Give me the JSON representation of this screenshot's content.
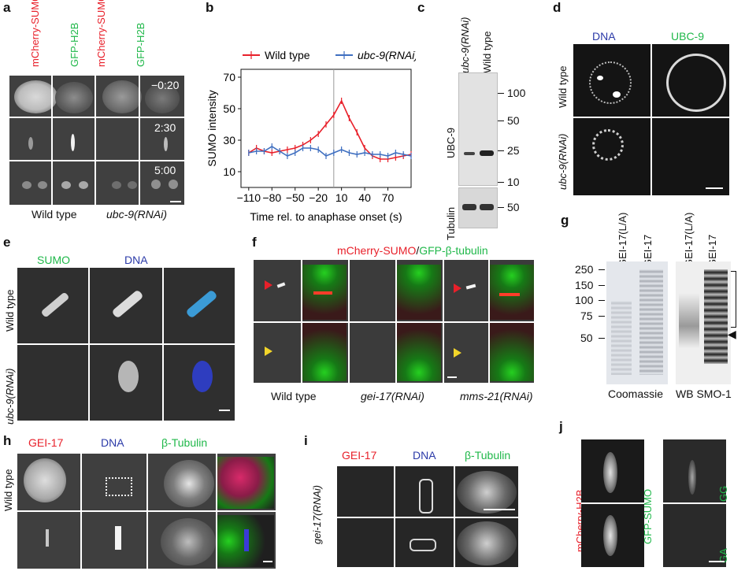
{
  "panels": {
    "a": {
      "letter": "a",
      "col_labels": [
        "mCherry-SUMO",
        "GFP-H2B",
        "mCherry-SUMO",
        "GFP-H2B"
      ],
      "time_labels": [
        "−0:20",
        "2:30",
        "5:00"
      ],
      "condition_labels": [
        "Wild type",
        "ubc-9(RNAi)"
      ]
    },
    "b": {
      "letter": "b"
    },
    "c": {
      "letter": "c",
      "col_labels": [
        "ubc-9(RNAi)",
        "Wild type"
      ],
      "row_labels": [
        "UBC-9",
        "Tubulin"
      ],
      "mw_markers": [
        "100",
        "50",
        "25",
        "10"
      ],
      "tubulin_marker": "50"
    },
    "d": {
      "letter": "d",
      "col_labels": [
        "DNA",
        "UBC-9"
      ],
      "row_labels": [
        "Wild type",
        "ubc-9(RNAi)"
      ]
    },
    "e": {
      "letter": "e",
      "col_labels": [
        "SUMO",
        "DNA"
      ],
      "row_labels": [
        "Wild type",
        "ubc-9(RNAi)"
      ]
    },
    "f": {
      "letter": "f",
      "title_part1": "mCherry-SUMO",
      "title_sep": "/",
      "title_part2": "GFP-β-tubulin",
      "condition_labels": [
        "Wild type",
        "gei-17(RNAi)",
        "mms-21(RNAi)"
      ]
    },
    "g": {
      "letter": "g",
      "col_labels": [
        "GEI-17(L/A)",
        "GEI-17",
        "GEI-17(L/A)",
        "GEI-17"
      ],
      "mw_markers": [
        "250",
        "150",
        "100",
        "75",
        "50"
      ],
      "bottom_labels": [
        "Coomassie",
        "WB SMO-1"
      ],
      "arrowhead": "◀"
    },
    "h": {
      "letter": "h",
      "col_labels": [
        "GEI-17",
        "DNA",
        "β-Tubulin"
      ],
      "row_label": "Wild type"
    },
    "i": {
      "letter": "i",
      "col_labels": [
        "GEI-17",
        "DNA",
        "β-Tubulin"
      ],
      "row_label": "gei-17(RNAi)"
    },
    "j": {
      "letter": "j",
      "left_label": "mCherry-H2B",
      "middle_label": "GFP-SUMO",
      "right_labels": [
        "GG",
        "GA"
      ]
    }
  },
  "chart_data": {
    "type": "line",
    "title": "",
    "xlabel": "Time rel. to anaphase onset (s)",
    "ylabel": "SUMO intensity",
    "xlim": [
      -120,
      100
    ],
    "ylim": [
      0,
      75
    ],
    "xticks": [
      -110,
      -80,
      -50,
      -20,
      10,
      40,
      70
    ],
    "yticks": [
      10,
      30,
      50,
      70
    ],
    "vline_x": 0,
    "legend_position": "top",
    "series": [
      {
        "name": "Wild type",
        "color": "#e8202a",
        "x": [
          -110,
          -100,
          -90,
          -80,
          -70,
          -60,
          -50,
          -40,
          -30,
          -20,
          -10,
          0,
          10,
          20,
          30,
          40,
          50,
          60,
          70,
          80,
          90,
          100
        ],
        "y": [
          22,
          25,
          23,
          22,
          23,
          24,
          25,
          27,
          30,
          34,
          40,
          46,
          55,
          44,
          35,
          25,
          20,
          18,
          18,
          19,
          20,
          21
        ]
      },
      {
        "name": "ubc-9(RNAi)",
        "color": "#3f6fc0",
        "x": [
          -110,
          -100,
          -90,
          -80,
          -70,
          -60,
          -50,
          -40,
          -30,
          -20,
          -10,
          0,
          10,
          20,
          30,
          40,
          50,
          60,
          70,
          80,
          90,
          100
        ],
        "y": [
          22,
          23,
          23,
          26,
          23,
          20,
          22,
          25,
          25,
          24,
          20,
          22,
          24,
          22,
          21,
          22,
          21,
          21,
          20,
          22,
          21,
          20
        ]
      }
    ]
  }
}
